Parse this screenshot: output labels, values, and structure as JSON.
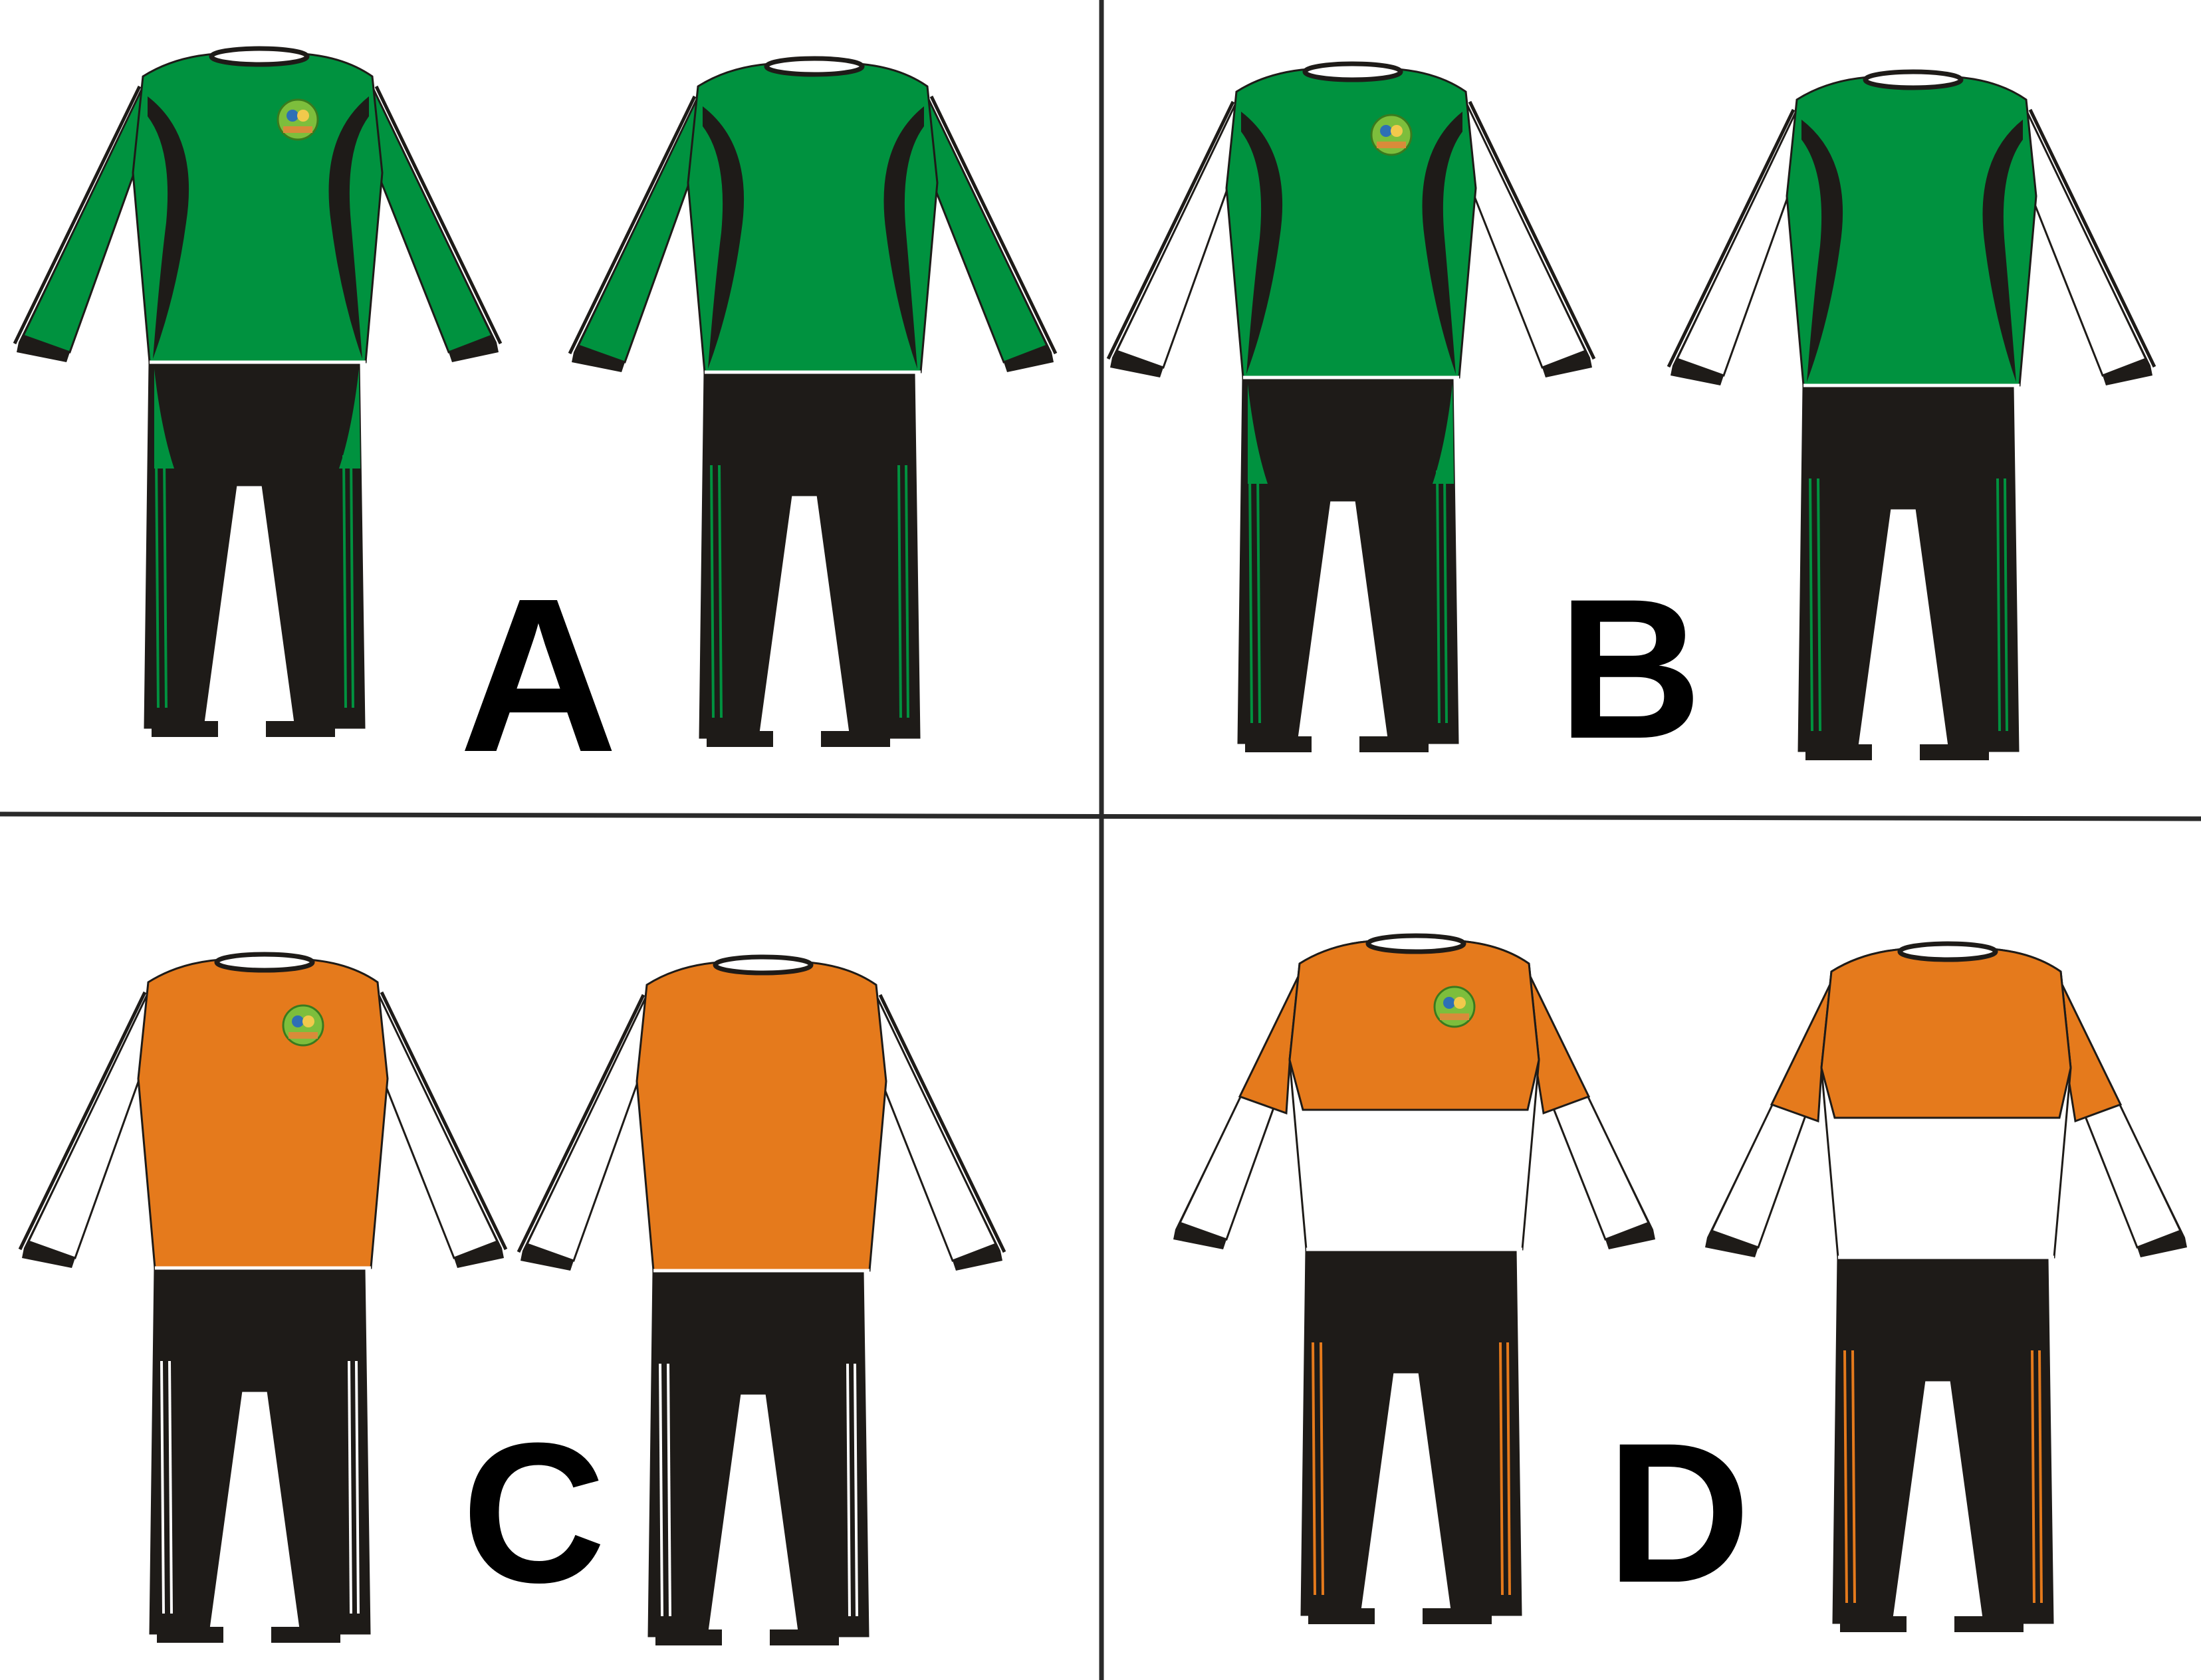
{
  "colors": {
    "green": "#00923F",
    "orange": "#E57A1C",
    "black": "#1E1B18",
    "white": "#FFFFFF",
    "divider": "#2A2A2A"
  },
  "quadrants": [
    {
      "label": "A",
      "body_color": "green",
      "sleeve_color": "green",
      "pants_stripe_color": "green",
      "outfits": [
        {
          "logo": true,
          "style": "swoosh"
        },
        {
          "logo": false,
          "style": "swoosh"
        }
      ]
    },
    {
      "label": "B",
      "body_color": "green",
      "sleeve_color": "white",
      "pants_stripe_color": "green",
      "outfits": [
        {
          "logo": true,
          "style": "swoosh"
        },
        {
          "logo": false,
          "style": "swoosh"
        }
      ]
    },
    {
      "label": "C",
      "body_color": "orange",
      "sleeve_color": "white",
      "pants_stripe_color": "white",
      "outfits": [
        {
          "logo": true,
          "style": "plain"
        },
        {
          "logo": false,
          "style": "plain"
        }
      ]
    },
    {
      "label": "D",
      "body_color": "orange",
      "sleeve_color": "white",
      "pants_stripe_color": "orange",
      "outfits": [
        {
          "logo": true,
          "style": "split"
        },
        {
          "logo": false,
          "style": "split"
        }
      ]
    }
  ]
}
